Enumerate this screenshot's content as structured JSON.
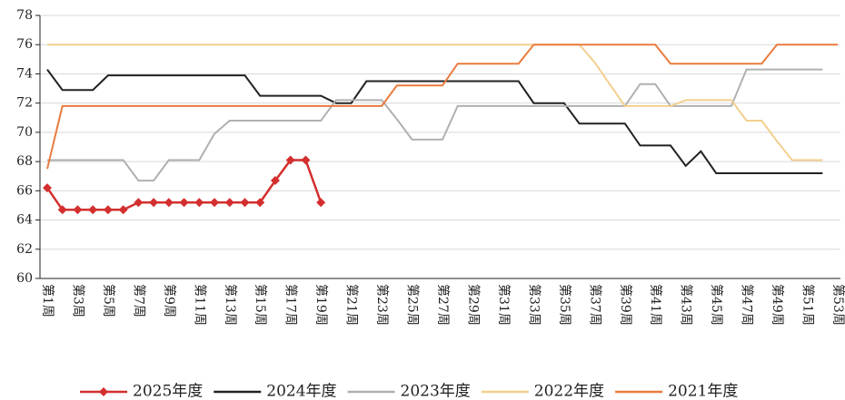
{
  "chart_data": {
    "type": "line",
    "categories": [
      "第1周",
      null,
      "第3周",
      null,
      "第5周",
      null,
      "第7周",
      null,
      "第9周",
      null,
      "第11周",
      null,
      "第13周",
      null,
      "第15周",
      null,
      "第17周",
      null,
      "第19周",
      null,
      "第21周",
      null,
      "第23周",
      null,
      "第25周",
      null,
      "第27周",
      null,
      "第29周",
      null,
      "第31周",
      null,
      "第33周",
      null,
      "第35周",
      null,
      "第37周",
      null,
      "第39周",
      null,
      "第41周",
      null,
      "第43周",
      null,
      "第45周",
      null,
      "第47周",
      null,
      "第49周",
      null,
      "第51周",
      null,
      "第53周"
    ],
    "ylim": [
      60,
      78
    ],
    "yticks": [
      60,
      62,
      64,
      66,
      68,
      70,
      72,
      74,
      76,
      78
    ],
    "grid": true,
    "series": [
      {
        "name": "2025年度",
        "color": "#d32f2f",
        "marker": "diamond",
        "values": [
          66.2,
          64.7,
          64.7,
          64.7,
          64.7,
          64.7,
          65.2,
          65.2,
          65.2,
          65.2,
          65.2,
          65.2,
          65.2,
          65.2,
          65.2,
          66.7,
          68.1,
          68.1,
          65.2,
          null,
          null,
          null,
          null,
          null,
          null,
          null,
          null,
          null,
          null,
          null,
          null,
          null,
          null,
          null,
          null,
          null,
          null,
          null,
          null,
          null,
          null,
          null,
          null,
          null,
          null,
          null,
          null,
          null,
          null,
          null,
          null,
          null,
          null
        ]
      },
      {
        "name": "2024年度",
        "color": "#222222",
        "values": [
          74.3,
          72.9,
          72.9,
          72.9,
          73.9,
          73.9,
          73.9,
          73.9,
          73.9,
          73.9,
          73.9,
          73.9,
          73.9,
          73.9,
          72.5,
          72.5,
          72.5,
          72.5,
          72.5,
          72.0,
          72.0,
          73.5,
          73.5,
          73.5,
          73.5,
          73.5,
          73.5,
          73.5,
          73.5,
          73.5,
          73.5,
          73.5,
          72.0,
          72.0,
          72.0,
          70.6,
          70.6,
          70.6,
          70.6,
          69.1,
          69.1,
          69.1,
          67.7,
          68.7,
          67.2,
          67.2,
          67.2,
          67.2,
          67.2,
          67.2,
          67.2,
          67.2,
          null
        ]
      },
      {
        "name": "2023年度",
        "color": "#b0b0b0",
        "values": [
          68.1,
          68.1,
          68.1,
          68.1,
          68.1,
          68.1,
          66.7,
          66.7,
          68.1,
          68.1,
          68.1,
          69.9,
          70.8,
          70.8,
          70.8,
          70.8,
          70.8,
          70.8,
          70.8,
          72.2,
          72.2,
          72.2,
          72.2,
          70.9,
          69.5,
          69.5,
          69.5,
          71.8,
          71.8,
          71.8,
          71.8,
          71.8,
          71.8,
          71.8,
          71.8,
          71.8,
          71.8,
          71.8,
          71.8,
          73.3,
          73.3,
          71.8,
          71.8,
          71.8,
          71.8,
          71.8,
          74.3,
          74.3,
          74.3,
          74.3,
          74.3,
          74.3,
          null
        ]
      },
      {
        "name": "2022年度",
        "color": "#f2cf8e",
        "values": [
          76.0,
          76.0,
          76.0,
          76.0,
          76.0,
          76.0,
          76.0,
          76.0,
          76.0,
          76.0,
          76.0,
          76.0,
          76.0,
          76.0,
          76.0,
          76.0,
          76.0,
          76.0,
          76.0,
          76.0,
          76.0,
          76.0,
          76.0,
          76.0,
          76.0,
          76.0,
          76.0,
          76.0,
          76.0,
          76.0,
          76.0,
          76.0,
          76.0,
          76.0,
          76.0,
          76.0,
          74.8,
          73.3,
          71.8,
          71.8,
          71.8,
          71.8,
          72.2,
          72.2,
          72.2,
          72.2,
          70.8,
          70.8,
          69.4,
          68.1,
          68.1,
          68.1,
          null
        ]
      },
      {
        "name": "2021年度",
        "color": "#e97b3e",
        "values": [
          67.5,
          71.8,
          71.8,
          71.8,
          71.8,
          71.8,
          71.8,
          71.8,
          71.8,
          71.8,
          71.8,
          71.8,
          71.8,
          71.8,
          71.8,
          71.8,
          71.8,
          71.8,
          71.8,
          71.8,
          71.8,
          71.8,
          71.8,
          73.2,
          73.2,
          73.2,
          73.2,
          74.7,
          74.7,
          74.7,
          74.7,
          74.7,
          76.0,
          76.0,
          76.0,
          76.0,
          76.0,
          76.0,
          76.0,
          76.0,
          76.0,
          74.7,
          74.7,
          74.7,
          74.7,
          74.7,
          74.7,
          74.7,
          76.0,
          76.0,
          76.0,
          76.0,
          76.0
        ]
      }
    ]
  }
}
